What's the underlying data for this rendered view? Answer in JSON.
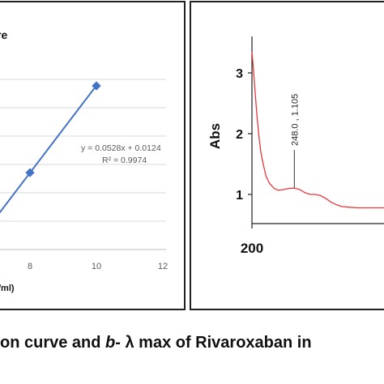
{
  "chart_data": [
    {
      "type": "scatter",
      "title": "re",
      "xlabel": "/ml)",
      "xlim": [
        5,
        12
      ],
      "x_ticks": [
        "8",
        "10",
        "12"
      ],
      "x": [
        8,
        10
      ],
      "values": [
        0.435,
        0.54
      ],
      "trendline": {
        "slope": 0.0528,
        "intercept": 0.0124,
        "equation": "y = 0.0528x + 0.0124",
        "r2": "R² = 0.9974"
      },
      "grid": true,
      "colors": {
        "series": "#4472c4",
        "grid": "#d9d9d9",
        "tick_text": "#595959"
      }
    },
    {
      "type": "line",
      "ylabel": "Abs",
      "y_ticks": [
        "3",
        "2",
        "1"
      ],
      "x_ticks": [
        "200"
      ],
      "ylim": [
        0.5,
        3.6
      ],
      "xlim": [
        200,
        355
      ],
      "x": [
        200,
        202,
        204,
        206,
        208,
        210,
        213,
        216,
        220,
        225,
        230,
        236,
        242,
        248,
        254,
        260,
        266,
        272,
        278,
        284,
        290,
        296,
        302,
        310,
        320,
        330,
        340,
        350,
        355
      ],
      "values": [
        3.35,
        3.0,
        2.6,
        2.25,
        1.95,
        1.7,
        1.48,
        1.3,
        1.18,
        1.1,
        1.07,
        1.08,
        1.1,
        1.105,
        1.08,
        1.03,
        1.0,
        1.0,
        0.98,
        0.93,
        0.87,
        0.83,
        0.8,
        0.79,
        0.78,
        0.78,
        0.78,
        0.78,
        0.78
      ],
      "peak_annotation": {
        "x": 248.0,
        "y": 1.105,
        "label": "248.0 , 1.105"
      },
      "colors": {
        "series": "#e8363a"
      }
    }
  ],
  "caption": {
    "part1": "on curve and ",
    "part2": "b-",
    "part3": " λ max of Rivaroxaban in"
  }
}
